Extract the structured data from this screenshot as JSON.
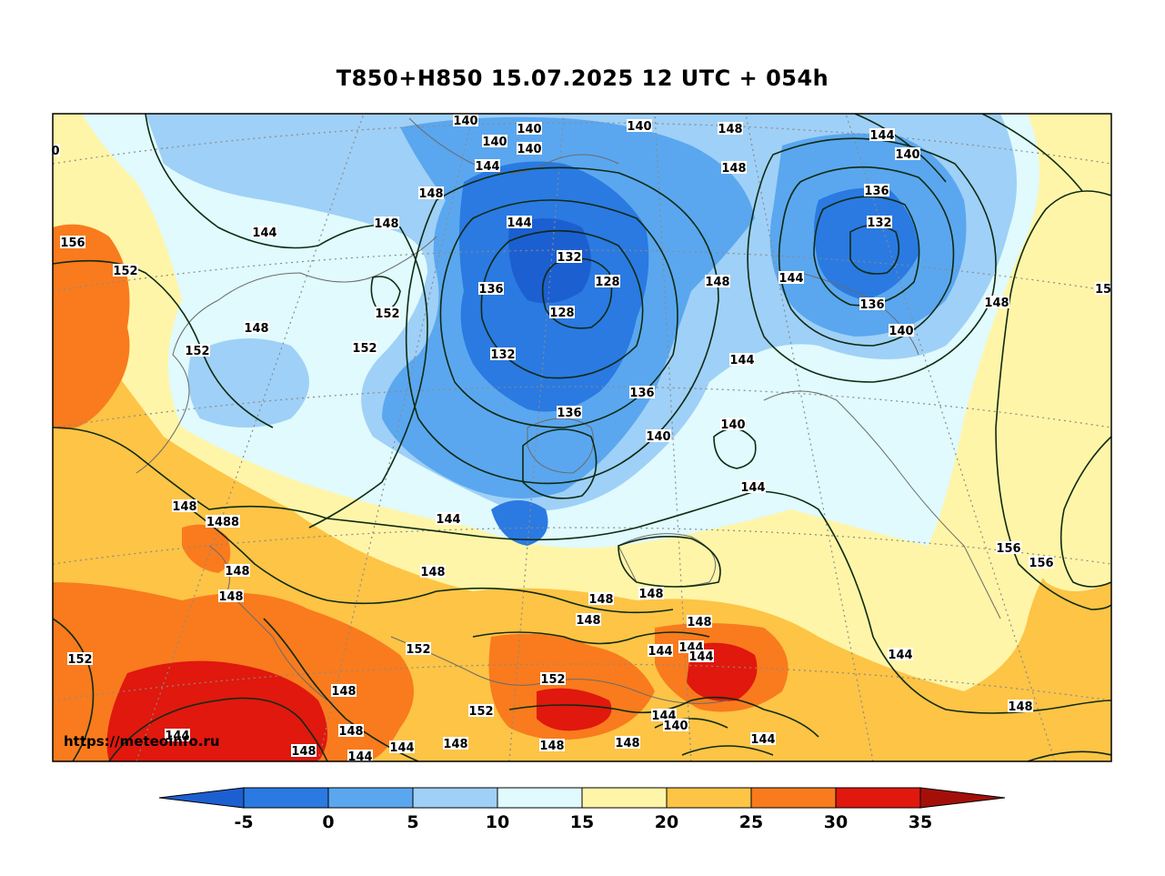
{
  "title": "T850+H850 15.07.2025 12 UTC + 054h",
  "watermark": "https://meteoinfo.ru",
  "colorbar": {
    "ticks": [
      "-5",
      "0",
      "5",
      "10",
      "15",
      "20",
      "25",
      "30",
      "35"
    ],
    "colors": [
      "#1c5fd1",
      "#2a7ae2",
      "#5aa7ef",
      "#9fd0f7",
      "#e0fafd",
      "#fff5a8",
      "#fdc446",
      "#f97b1d",
      "#e0180d",
      "#a50f09"
    ]
  },
  "contour_labels": {
    "l1": "140",
    "l2": "140",
    "l3": "140",
    "l4": "140",
    "l5": "140",
    "l6": "148",
    "l7": "148",
    "l8": "144",
    "l9": "140",
    "l10": "144",
    "l11": "148",
    "l12": "148",
    "l13": "136",
    "l14": "132",
    "l15": "144",
    "l16": "156",
    "l17": "152",
    "l18": "144",
    "l19": "148",
    "l20": "132",
    "l21": "128",
    "l22": "136",
    "l23": "128",
    "l24": "148",
    "l25": "144",
    "l26": "136",
    "l27": "152",
    "l28": "148",
    "l29": "152",
    "l30": "152",
    "l31": "132",
    "l32": "140",
    "l33": "144",
    "l34": "136",
    "l35": "136",
    "l36": "140",
    "l37": "140",
    "l38": "144",
    "l39": "148",
    "l40": "1488",
    "l41": "144",
    "l42": "148",
    "l43": "156",
    "l44": "156",
    "l45": "148",
    "l46": "148",
    "l47": "148",
    "l48": "148",
    "l49": "148",
    "l50": "148",
    "l51": "152",
    "l52": "152",
    "l53": "144",
    "l54": "144",
    "l55": "144",
    "l56": "144",
    "l57": "152",
    "l58": "148",
    "l59": "152",
    "l60": "148",
    "l61": "144",
    "l62": "148",
    "l63": "144",
    "l64": "140",
    "l65": "148",
    "l66": "144",
    "l67": "148",
    "l68": "144",
    "l69": "148",
    "l70": "144",
    "l71": "148",
    "l72": "15",
    "l73": "0"
  }
}
